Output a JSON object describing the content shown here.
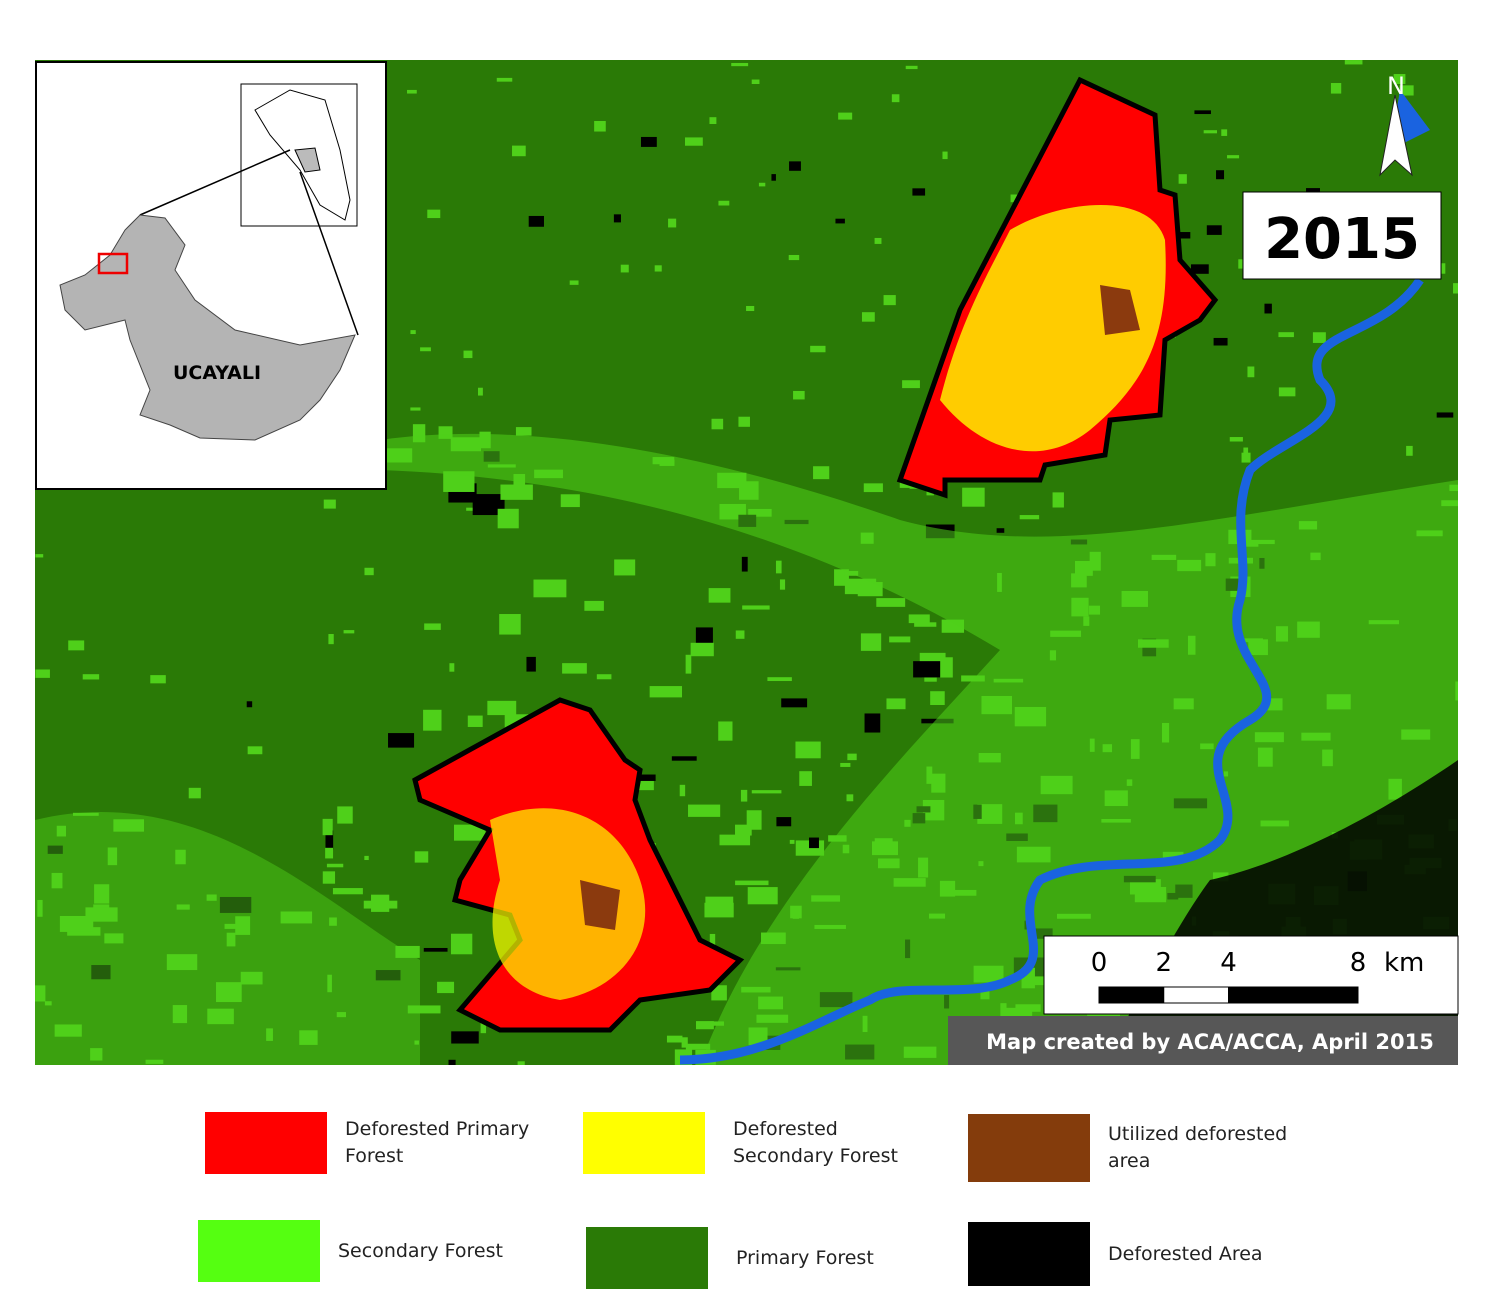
{
  "map": {
    "year": "2015",
    "north_label": "N",
    "inset_label": "UCAYALI",
    "credit": "Map created by ACA/ACCA, April 2015",
    "scale": {
      "ticks": [
        0,
        2,
        4,
        8
      ],
      "unit": "km"
    },
    "legend": [
      {
        "label": "Deforested Primary Forest"
      },
      {
        "label": "Deforested Secondary Forest"
      },
      {
        "label": "Utilized deforested area"
      },
      {
        "label": "Secondary Forest"
      },
      {
        "label": "Primary Forest"
      },
      {
        "label": "Deforested Area"
      }
    ]
  }
}
